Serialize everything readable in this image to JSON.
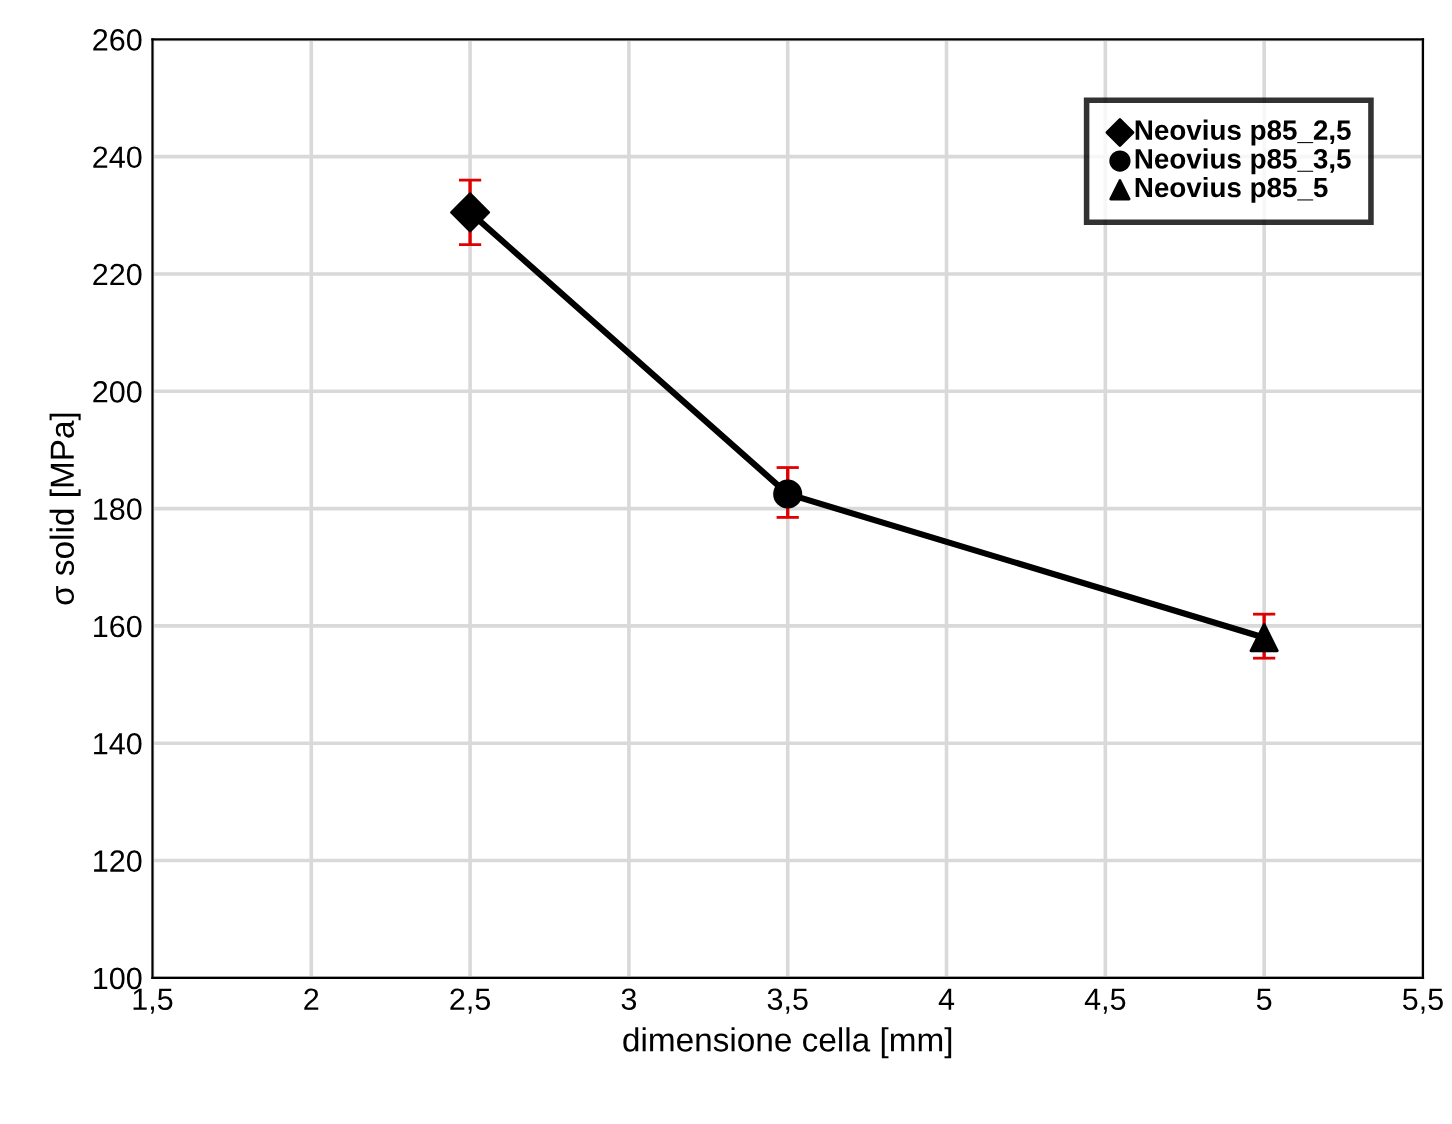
{
  "chart_data": {
    "type": "scatter",
    "xlabel": "dimensione cella [mm]",
    "ylabel": "σ solid [MPa]",
    "xlim": [
      1.5,
      5.5
    ],
    "xticks": [
      {
        "value": 1.5,
        "label": "1,5"
      },
      2,
      {
        "value": 2.5,
        "label": "2,5"
      },
      3,
      {
        "value": 3.5,
        "label": "3,5"
      },
      4,
      {
        "value": 4.5,
        "label": "4,5"
      },
      5,
      {
        "value": 5.5,
        "label": "5,5"
      }
    ],
    "ylim": [
      100,
      260
    ],
    "yticks": [
      100,
      120,
      140,
      160,
      180,
      200,
      220,
      240,
      260
    ],
    "grid": true,
    "legend": "top right",
    "series": [
      {
        "type": "line",
        "color": "#000000",
        "x": [
          2.5,
          3.5,
          5
        ],
        "values": [
          230.5,
          182.5,
          158
        ],
        "marker": "none",
        "line_style": "solid"
      },
      {
        "name": "Neovius p85_2,5",
        "color": "#000000",
        "marker": "diamond",
        "x": [
          2.5
        ],
        "values": [
          230.5
        ],
        "errors": [
          [
            225,
            236
          ]
        ]
      },
      {
        "name": "Neovius p85_3,5",
        "color": "#000000",
        "marker": "circle",
        "x": [
          3.5
        ],
        "values": [
          182.5
        ],
        "errors": [
          [
            178.5,
            187
          ]
        ]
      },
      {
        "name": "Neovius p85_5",
        "color": "#000000",
        "marker": "triangle",
        "x": [
          5
        ],
        "values": [
          158
        ],
        "errors": [
          [
            154.5,
            162
          ]
        ]
      }
    ]
  }
}
